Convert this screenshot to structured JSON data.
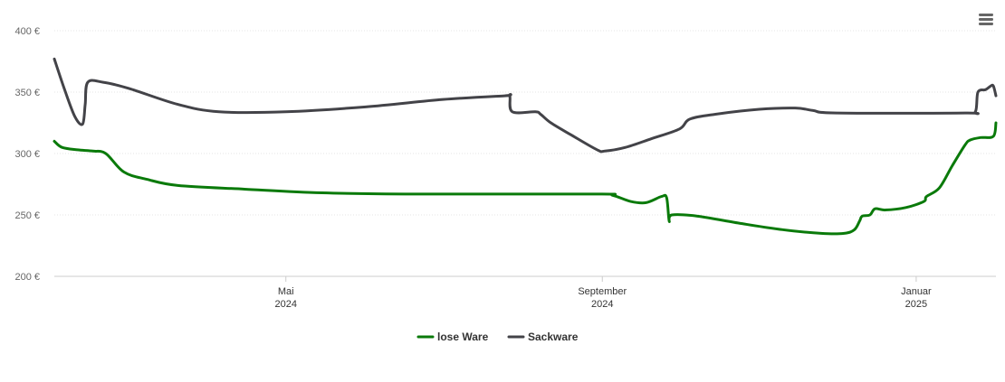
{
  "chart_data": {
    "type": "line",
    "title": "",
    "xlabel": "",
    "ylabel": "",
    "ylim": [
      200,
      400
    ],
    "y_ticks": [
      200,
      250,
      300,
      350,
      400
    ],
    "y_tick_labels": [
      "200 €",
      "250 €",
      "300 €",
      "350 €",
      "400 €"
    ],
    "x_domain": [
      "2024-02-01",
      "2025-02-01"
    ],
    "x_ticks": [
      {
        "date": "2024-05-01",
        "label_month": "Mai",
        "label_year": "2024"
      },
      {
        "date": "2024-09-01",
        "label_month": "September",
        "label_year": "2024"
      },
      {
        "date": "2025-01-01",
        "label_month": "Januar",
        "label_year": "2025"
      }
    ],
    "grid": true,
    "legend_position": "bottom",
    "series": [
      {
        "name": "lose Ware",
        "color": "#0a7a0a",
        "points": [
          [
            "2024-02-01",
            310
          ],
          [
            "2024-02-04",
            305
          ],
          [
            "2024-02-10",
            303
          ],
          [
            "2024-02-16",
            302
          ],
          [
            "2024-02-21",
            300
          ],
          [
            "2024-02-28",
            285
          ],
          [
            "2024-03-08",
            279
          ],
          [
            "2024-03-20",
            274
          ],
          [
            "2024-04-15",
            271
          ],
          [
            "2024-05-15",
            268
          ],
          [
            "2024-06-20",
            267
          ],
          [
            "2024-08-30",
            267
          ],
          [
            "2024-09-05",
            266
          ],
          [
            "2024-09-12",
            261
          ],
          [
            "2024-09-18",
            260
          ],
          [
            "2024-09-24",
            265
          ],
          [
            "2024-09-26",
            264
          ],
          [
            "2024-09-27",
            245
          ],
          [
            "2024-09-28",
            250
          ],
          [
            "2024-10-08",
            249
          ],
          [
            "2024-10-25",
            243
          ],
          [
            "2024-11-10",
            238
          ],
          [
            "2024-11-25",
            235
          ],
          [
            "2024-12-04",
            235
          ],
          [
            "2024-12-08",
            238
          ],
          [
            "2024-12-10",
            245
          ],
          [
            "2024-12-11",
            249
          ],
          [
            "2024-12-14",
            250
          ],
          [
            "2024-12-16",
            255
          ],
          [
            "2024-12-20",
            254
          ],
          [
            "2024-12-28",
            256
          ],
          [
            "2025-01-04",
            261
          ],
          [
            "2025-01-05",
            265
          ],
          [
            "2025-01-10",
            272
          ],
          [
            "2025-01-15",
            290
          ],
          [
            "2025-01-20",
            307
          ],
          [
            "2025-01-22",
            311
          ],
          [
            "2025-01-26",
            313
          ],
          [
            "2025-01-31",
            314
          ],
          [
            "2025-02-01",
            325
          ]
        ]
      },
      {
        "name": "Sackware",
        "color": "#434348",
        "points": [
          [
            "2024-02-01",
            377
          ],
          [
            "2024-02-05",
            352
          ],
          [
            "2024-02-09",
            330
          ],
          [
            "2024-02-12",
            324
          ],
          [
            "2024-02-13",
            340
          ],
          [
            "2024-02-14",
            358
          ],
          [
            "2024-02-20",
            358
          ],
          [
            "2024-03-01",
            353
          ],
          [
            "2024-03-20",
            340
          ],
          [
            "2024-04-05",
            334
          ],
          [
            "2024-05-01",
            334
          ],
          [
            "2024-06-01",
            338
          ],
          [
            "2024-07-01",
            344
          ],
          [
            "2024-07-25",
            347
          ],
          [
            "2024-07-27",
            347
          ],
          [
            "2024-07-28",
            334
          ],
          [
            "2024-08-06",
            334
          ],
          [
            "2024-08-08",
            332
          ],
          [
            "2024-08-12",
            325
          ],
          [
            "2024-08-20",
            315
          ],
          [
            "2024-08-30",
            303
          ],
          [
            "2024-09-02",
            302
          ],
          [
            "2024-09-10",
            305
          ],
          [
            "2024-09-20",
            312
          ],
          [
            "2024-10-01",
            320
          ],
          [
            "2024-10-05",
            328
          ],
          [
            "2024-10-15",
            332
          ],
          [
            "2024-11-01",
            336
          ],
          [
            "2024-11-15",
            337
          ],
          [
            "2024-11-22",
            335
          ],
          [
            "2024-12-01",
            333
          ],
          [
            "2025-01-20",
            333
          ],
          [
            "2025-01-24",
            334
          ],
          [
            "2025-01-25",
            350
          ],
          [
            "2025-01-28",
            352
          ],
          [
            "2025-01-30",
            355
          ],
          [
            "2025-01-31",
            355
          ],
          [
            "2025-02-01",
            347
          ]
        ]
      }
    ]
  },
  "legend": {
    "items": [
      {
        "label": "lose Ware",
        "color": "#0a7a0a"
      },
      {
        "label": "Sackware",
        "color": "#434348"
      }
    ]
  },
  "menu": {
    "icon": "hamburger-menu-icon"
  }
}
